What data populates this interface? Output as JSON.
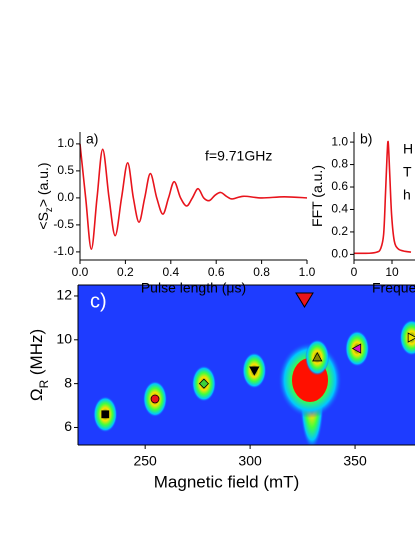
{
  "chart_data": [
    {
      "type": "line",
      "panel": "a)",
      "annotation": "f=9.71GHz",
      "xlabel": "Pulse length (μs)",
      "ylabel": [
        "<S",
        "z",
        "> (a.u.)"
      ],
      "xlim": [
        0,
        1.0
      ],
      "ylim": [
        -1.15,
        1.22
      ],
      "xticks": [
        {
          "value": 0,
          "label": "0.0"
        },
        0.2,
        0.4,
        0.6,
        0.8,
        {
          "value": 1,
          "label": "1.0"
        }
      ],
      "yticks": [
        {
          "value": 1,
          "label": "1.0"
        },
        0.5,
        {
          "value": 0,
          "label": "0.0"
        },
        -0.5,
        {
          "value": -1,
          "label": "-1.0"
        }
      ],
      "color": "#e8141c",
      "x": [
        0,
        0.025,
        0.05,
        0.075,
        0.1,
        0.128,
        0.155,
        0.183,
        0.21,
        0.235,
        0.26,
        0.285,
        0.31,
        0.338,
        0.365,
        0.39,
        0.415,
        0.443,
        0.47,
        0.495,
        0.52,
        0.545,
        0.57,
        0.595,
        0.62,
        0.645,
        0.67,
        0.72,
        0.8,
        0.9,
        1.0
      ],
      "values": [
        1.0,
        0,
        -0.95,
        0,
        0.9,
        0,
        -0.7,
        0,
        0.65,
        0,
        -0.45,
        0,
        0.45,
        0,
        -0.3,
        0,
        0.3,
        0,
        -0.15,
        0,
        0.17,
        0,
        -0.05,
        0.05,
        0.1,
        0.03,
        -0.02,
        0.03,
        0,
        0.02,
        0
      ]
    },
    {
      "type": "line",
      "panel": "b)",
      "annotations": [
        "H",
        "T",
        "h"
      ],
      "xlabel": "Freque",
      "ylabel": [
        "FFT (a.u.)"
      ],
      "xlim": [
        0,
        30
      ],
      "ylim": [
        -0.05,
        1.09
      ],
      "xticks": [
        0,
        10
      ],
      "yticks": [
        {
          "value": 0,
          "label": "0.0"
        },
        0.2,
        0.4,
        0.6,
        0.8,
        {
          "value": 1,
          "label": "1.0"
        }
      ],
      "color": "#e8141c",
      "x": [
        0,
        4,
        6,
        7,
        7.8,
        8.3,
        8.7,
        9.0,
        9.4,
        9.9,
        10.6,
        11.6,
        13,
        15
      ],
      "values": [
        0.01,
        0.01,
        0.02,
        0.05,
        0.18,
        0.55,
        0.88,
        1.0,
        0.72,
        0.35,
        0.12,
        0.05,
        0.03,
        0.02
      ]
    },
    {
      "type": "scatter",
      "panel": "c)",
      "xlabel": "Magnetic field (mT)",
      "ylabel": [
        "Ω",
        "R",
        " (MHz)"
      ],
      "xlim": [
        218,
        400
      ],
      "ylim": [
        5.2,
        12.5
      ],
      "xticks": [
        250,
        300,
        350
      ],
      "yticks": [
        6,
        8,
        10,
        12
      ],
      "x": [
        231,
        254.7,
        278,
        302,
        332,
        351,
        377
      ],
      "values": [
        6.6,
        7.3,
        8.0,
        8.6,
        9.2,
        9.6,
        10.1
      ],
      "markers": [
        "square",
        "circle",
        "diamond",
        "triangle-down",
        "triangle-up",
        "triangle-left",
        "triangle-right"
      ],
      "colors": [
        "#000000",
        "#e8141c",
        "#3cd23c",
        "#000000",
        "#8a8a00",
        "#d214c8",
        "#f0e600"
      ]
    }
  ]
}
